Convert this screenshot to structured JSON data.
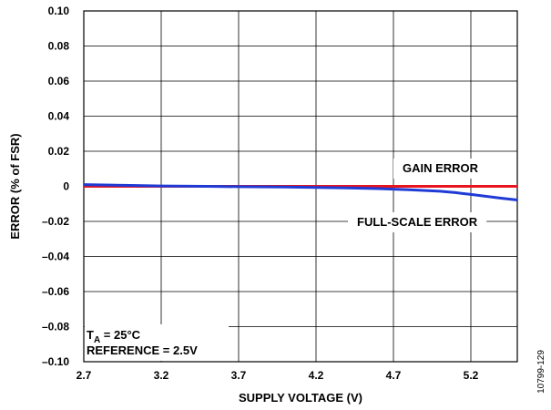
{
  "chart_data": {
    "type": "line",
    "title": "",
    "xlabel": "SUPPLY VOLTAGE (V)",
    "ylabel": "ERROR (% of FSR)",
    "xlim": [
      2.7,
      5.5
    ],
    "ylim": [
      -0.1,
      0.1
    ],
    "x_ticks": [
      2.7,
      3.2,
      3.7,
      4.2,
      4.7,
      5.2
    ],
    "x_tick_labels": [
      "2.7",
      "3.2",
      "3.7",
      "4.2",
      "4.7",
      "5.2"
    ],
    "y_ticks": [
      0.1,
      0.08,
      0.06,
      0.04,
      0.02,
      0,
      -0.02,
      -0.04,
      -0.06,
      -0.08,
      -0.1
    ],
    "y_tick_labels": [
      "0.10",
      "0.08",
      "0.06",
      "0.04",
      "0.02",
      "0",
      "–0.02",
      "–0.04",
      "–0.06",
      "–0.08",
      "–0.10"
    ],
    "grid": true,
    "series": [
      {
        "name": "GAIN ERROR",
        "color": "#e8141e",
        "x": [
          2.7,
          3.0,
          3.5,
          4.0,
          4.5,
          5.0,
          5.5
        ],
        "y": [
          0,
          0,
          0,
          0,
          0,
          0,
          0
        ]
      },
      {
        "name": "FULL-SCALE ERROR",
        "color": "#1f3bd6",
        "x": [
          2.7,
          3.0,
          3.2,
          3.5,
          3.7,
          4.0,
          4.2,
          4.4,
          4.6,
          4.8,
          5.0,
          5.1,
          5.2,
          5.3,
          5.4,
          5.5
        ],
        "y": [
          0.001,
          0.0005,
          0.0002,
          0.0,
          -0.0002,
          -0.0004,
          -0.0006,
          -0.0009,
          -0.0013,
          -0.0019,
          -0.0028,
          -0.0036,
          -0.0046,
          -0.0057,
          -0.0068,
          -0.0078
        ]
      }
    ],
    "annotations": {
      "gain_label": "GAIN ERROR",
      "fullscale_label": "FULL-SCALE ERROR",
      "temp_prefix": "T",
      "temp_sub": "A",
      "temp_suffix": " = 25°C",
      "reference": "REFERENCE = 2.5V"
    }
  },
  "figure_id": "10799-129"
}
